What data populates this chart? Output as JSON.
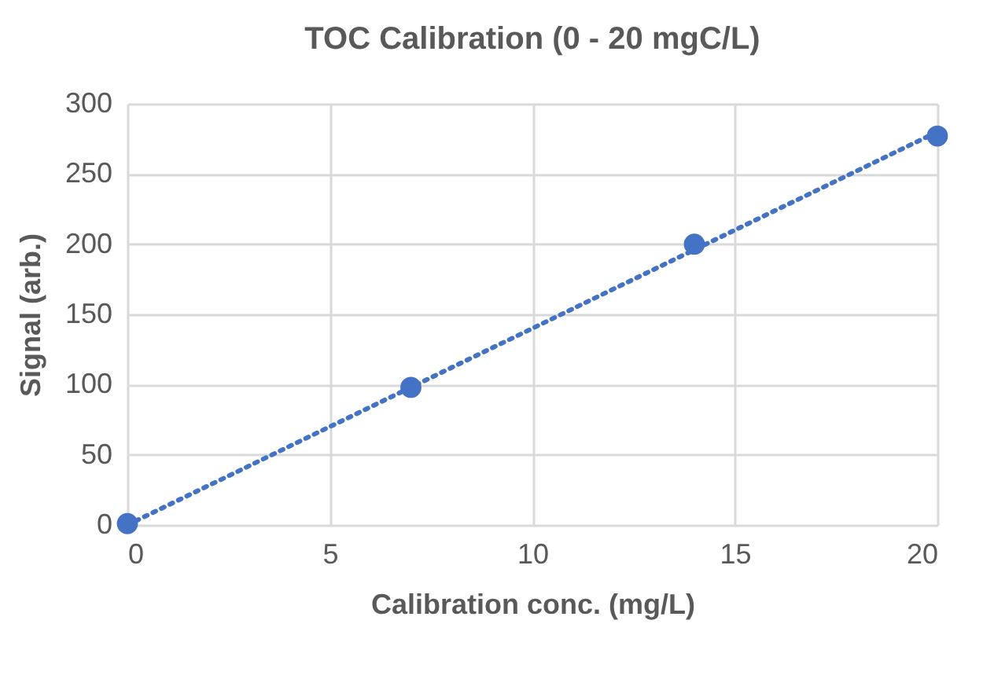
{
  "chart_data": {
    "type": "scatter",
    "title": "TOC Calibration (0 - 20 mgC/L)",
    "xlabel": "Calibration conc. (mg/L)",
    "ylabel": "Signal (arb.)",
    "series": [
      {
        "color": "#4472c4",
        "x": [
          0,
          7,
          14,
          20
        ],
        "values": [
          1,
          98,
          200,
          277
        ],
        "marker": "circle"
      },
      {
        "type": "line",
        "color": "#4472c4",
        "x": [
          0,
          20
        ],
        "values": [
          0,
          280
        ],
        "marker": "none",
        "line_style": "dotted"
      }
    ],
    "xlim": [
      0,
      20
    ],
    "xticks": [
      0,
      5,
      10,
      15,
      20
    ],
    "ylim": [
      0,
      300
    ],
    "yticks": [
      0,
      50,
      100,
      150,
      200,
      250,
      300
    ],
    "grid": true,
    "legend": false
  }
}
